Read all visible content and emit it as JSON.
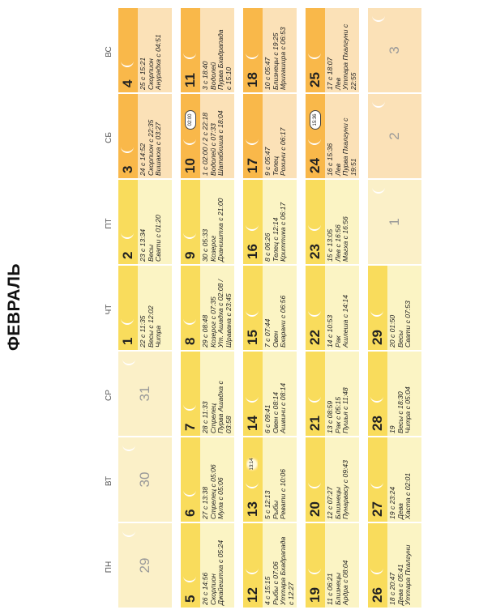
{
  "title": "ФЕВРАЛЬ",
  "weekdays": [
    "ПН",
    "ВТ",
    "СР",
    "ЧТ",
    "ПТ",
    "СБ",
    "ВС"
  ],
  "colors": {
    "weekday_bg": "#fbf4c4",
    "weekday_band": "#f9dc5c",
    "weekend_bg": "#fbe1b7",
    "weekend_band": "#f9b84a",
    "other_month_bg": "#fbf0c8",
    "moon": "#ffffff"
  },
  "weeks": [
    [
      {
        "day": "29",
        "other": true,
        "info": []
      },
      {
        "day": "30",
        "other": true,
        "info": []
      },
      {
        "day": "31",
        "other": true,
        "info": []
      },
      {
        "day": "1",
        "info": [
          "22 с 11:35",
          "Весы с 12:02",
          "Читра"
        ]
      },
      {
        "day": "2",
        "info": [
          "23 с 13:34",
          "Весы",
          "Свати с 01:20"
        ]
      },
      {
        "day": "3",
        "info": [
          "24 с 14:52",
          "Скорпион с 22:35",
          "Вишакха с 03:27"
        ]
      },
      {
        "day": "4",
        "info": [
          "25 с 15:21",
          "Скорпион",
          "Анурадха с 04:51"
        ]
      }
    ],
    [
      {
        "day": "5",
        "info": [
          "26 с 14:56",
          "Скорпион",
          "Джайештха с 05:24"
        ]
      },
      {
        "day": "6",
        "info": [
          "27 с 13:38",
          "Стрелец с 05:06",
          "Мула с 05:06"
        ]
      },
      {
        "day": "7",
        "info": [
          "28 с 11:33",
          "Стрелец",
          "Пурва Ашадха с",
          "03:58"
        ]
      },
      {
        "day": "8",
        "info": [
          "29 с 08:48",
          "Козерог с 07:35",
          "Ут. Ашадха с 02:08 /",
          "Шравана с 23:45"
        ]
      },
      {
        "day": "9",
        "info": [
          "30 с 05:33",
          "Козерог",
          "Дхаништха с 21:00"
        ]
      },
      {
        "day": "10",
        "badge": "02:00",
        "info": [
          "1 с 02:00 / 2 с 22:18",
          "Водолей с 07:33",
          "Шатабхиша с 18:04"
        ]
      },
      {
        "day": "11",
        "info": [
          "3 с 18:40",
          "Водолей",
          "Пурва Бхадрапада",
          "с 15:10"
        ]
      }
    ],
    [
      {
        "day": "12",
        "info": [
          "4 с 15:15",
          "Рыбы с 07:06",
          "Уттара Бхадрапада",
          "с 12:27"
        ]
      },
      {
        "day": "13",
        "sun": "13:14",
        "info": [
          "5 с 12:13",
          "Рыбы",
          "Ревати с 10:06"
        ]
      },
      {
        "day": "14",
        "info": [
          "6 с 09:41",
          "Овен с 08:14",
          "Ашвини с 08:14"
        ]
      },
      {
        "day": "15",
        "info": [
          "7 с 07:44",
          "Овен",
          "Бхарани с 06:56"
        ]
      },
      {
        "day": "16",
        "info": [
          "8 с 06:26",
          "Телец с 12:14",
          "Криттика с 06:17"
        ]
      },
      {
        "day": "17",
        "info": [
          "9 с 05:47",
          "Телец",
          "Рохини с 06:17"
        ]
      },
      {
        "day": "18",
        "info": [
          "10 с 05:47",
          "Близнецы с 19:25",
          "Мригашира с 06:53"
        ]
      }
    ],
    [
      {
        "day": "19",
        "info": [
          "11 с 06:21",
          "Близнецы",
          "Ардра с 08:04"
        ]
      },
      {
        "day": "20",
        "info": [
          "12 с 07:27",
          "Близнецы",
          "Пунарвасу с 09:43"
        ]
      },
      {
        "day": "21",
        "info": [
          "13 с 08:59",
          "Рак с 05:15",
          "Пушья с 11:48"
        ]
      },
      {
        "day": "22",
        "info": [
          "14 с 10:53",
          "Рак",
          "Ашлеша с 14:14"
        ]
      },
      {
        "day": "23",
        "info": [
          "15 с 13:05",
          "Лев с 16:56",
          "Магха с 16:56"
        ]
      },
      {
        "day": "24",
        "badge": "15:36",
        "info": [
          "16 с 15:36",
          "Лев",
          "Пурва Пхалгуни с",
          "19:51"
        ]
      },
      {
        "day": "25",
        "info": [
          "17 с 18:07",
          "Лев",
          "Уттара Пхалгуни с",
          "22:55"
        ]
      }
    ],
    [
      {
        "day": "26",
        "info": [
          "18 с 20:47",
          "Дева с 05:41",
          "Уттара Пхалгуни"
        ]
      },
      {
        "day": "27",
        "info": [
          "19 с 23:24",
          "Дева",
          "Хаста с 02:01"
        ]
      },
      {
        "day": "28",
        "info": [
          "19",
          "Весы с 18:30",
          "Читра с 05:04"
        ]
      },
      {
        "day": "29",
        "info": [
          "20 с 01:50",
          "Весы",
          "Свати с 07:53"
        ]
      },
      {
        "day": "1",
        "other": true,
        "info": []
      },
      {
        "day": "2",
        "other": true,
        "info": []
      },
      {
        "day": "3",
        "other": true,
        "info": []
      }
    ]
  ]
}
